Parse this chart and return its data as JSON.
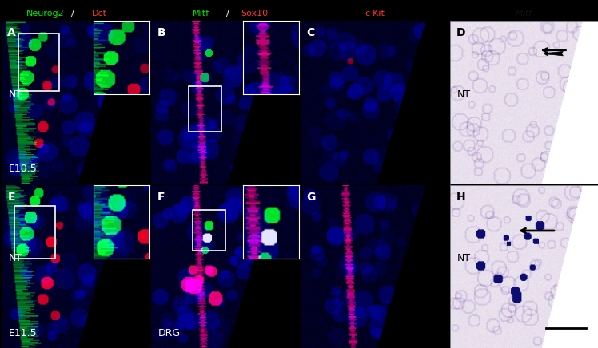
{
  "figure_width": 7.48,
  "figure_height": 4.36,
  "dpi": 100,
  "background_color": "#000000",
  "white_bg": "#ffffff",
  "panel_labels": [
    "A",
    "B",
    "C",
    "D",
    "E",
    "F",
    "G",
    "H"
  ],
  "col_headers": [
    "Neurog2/Dct",
    "Mitf/Sox10",
    "c-Kit",
    "Mitf"
  ],
  "col_header_colors": [
    "mixed",
    "mixed",
    "red",
    "italic_black"
  ],
  "neurog2_color": "#00ff00",
  "dct_color": "#ff0000",
  "mitf_green_color": "#00ff00",
  "sox10_color": "#ff0000",
  "ckit_color": "#ff0000",
  "row_labels": [
    "E10.5",
    "E11.5"
  ],
  "drg_label": "DRG",
  "nt_label": "NT",
  "panel_label_color": "#ffffff",
  "panel_label_color_dh": "#000000",
  "row_label_color": "#ffffff",
  "scale_bar_color": "#000000",
  "fluor_bg": "#00008B",
  "hist_bg_color": "#e8e0f0",
  "grid_rows": 2,
  "grid_cols": 4,
  "label_fontsize": 9,
  "header_fontsize": 9,
  "panel_letter_fontsize": 10
}
